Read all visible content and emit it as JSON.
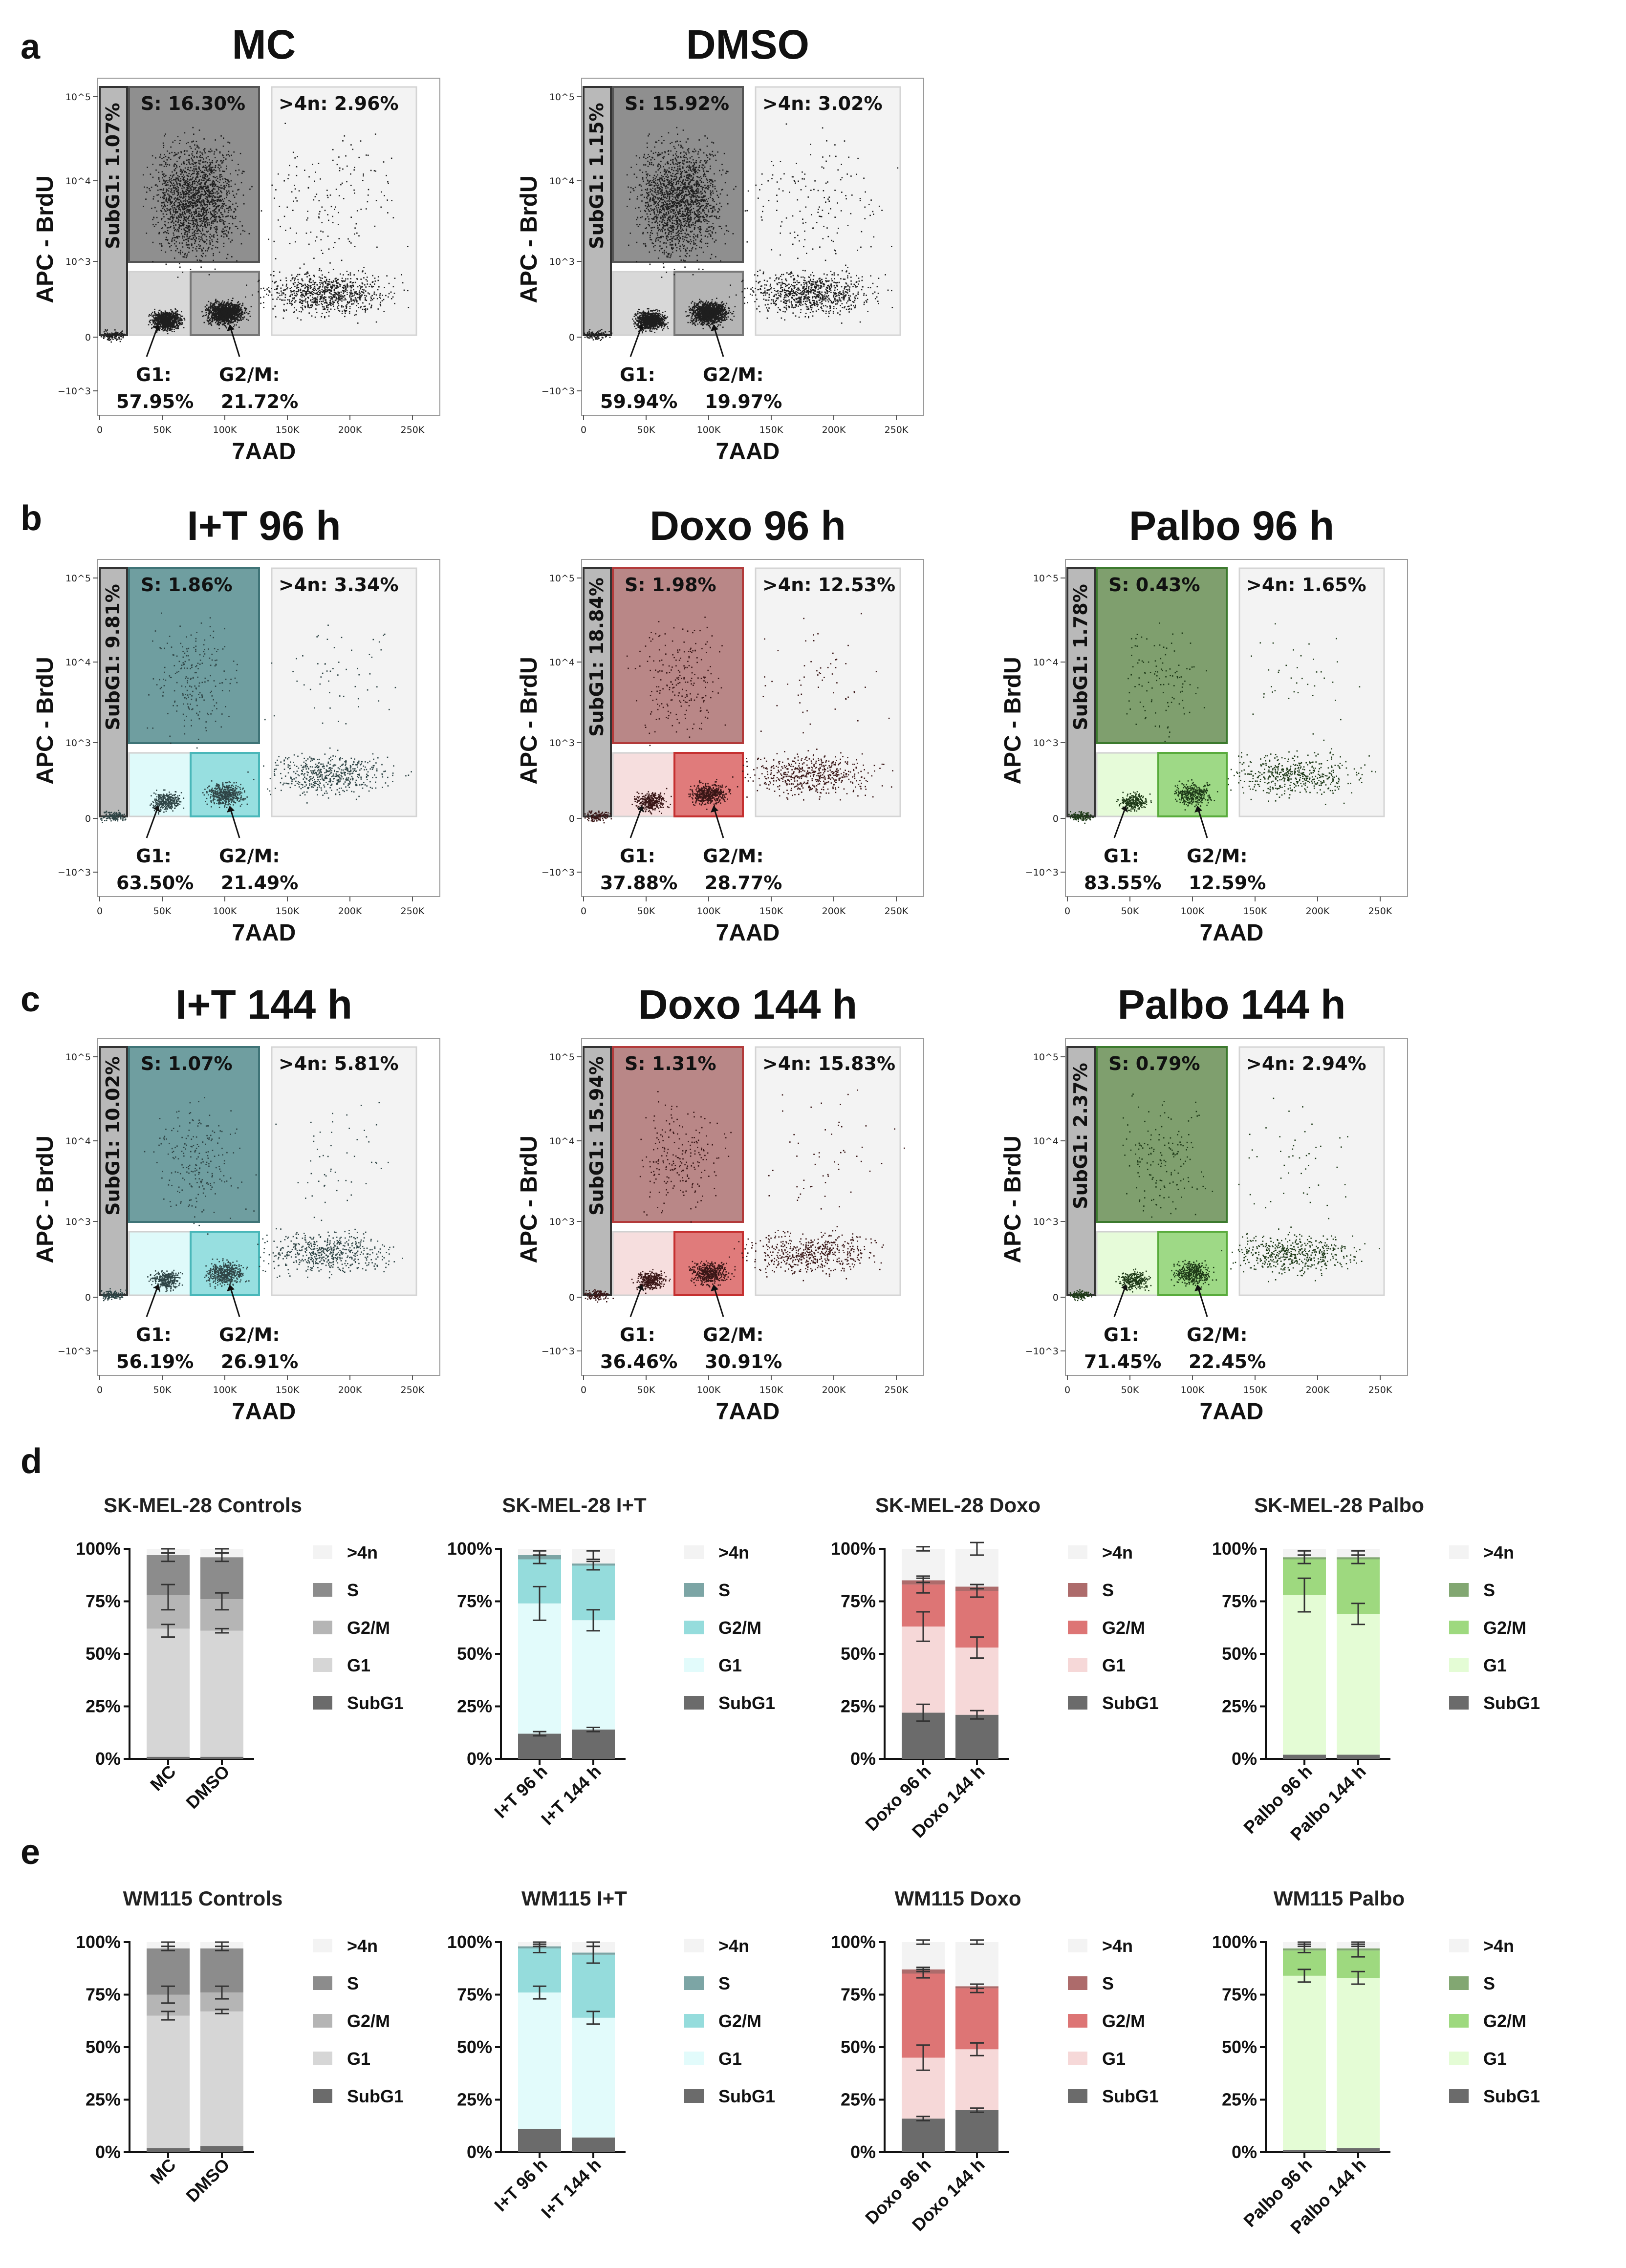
{
  "panel_labels": {
    "a": "a",
    "b": "b",
    "c": "c",
    "d": "d",
    "e": "e"
  },
  "flow": {
    "x_label": "7AAD",
    "y_label": "APC - BrdU",
    "x_ticks": [
      "0",
      "50K",
      "100K",
      "150K",
      "200K",
      "250K"
    ],
    "y_ticks": [
      "10^5",
      "10^4",
      "10^3",
      "0",
      "−10^3"
    ],
    "plots": [
      {
        "id": "mc",
        "title": "MC",
        "theme": "gray",
        "density": 1.0,
        "sub": "SubG1: 1.07%",
        "s": "S: 16.30%",
        "g4n": ">4n: 2.96%",
        "g1": "G1:",
        "g1v": "57.95%",
        "g2": "G2/M:",
        "g2v": "21.72%"
      },
      {
        "id": "dmso",
        "title": "DMSO",
        "theme": "gray",
        "density": 1.0,
        "sub": "SubG1: 1.15%",
        "s": "S: 15.92%",
        "g4n": ">4n: 3.02%",
        "g1": "G1:",
        "g1v": "59.94%",
        "g2": "G2/M:",
        "g2v": "19.97%"
      },
      {
        "id": "it96",
        "title": "I+T 96 h",
        "theme": "teal",
        "density": 0.35,
        "sub": "SubG1: 9.81%",
        "s": "S: 1.86%",
        "g4n": ">4n: 3.34%",
        "g1": "G1:",
        "g1v": "63.50%",
        "g2": "G2/M:",
        "g2v": "21.49%"
      },
      {
        "id": "doxo96",
        "title": "Doxo 96 h",
        "theme": "red",
        "density": 0.35,
        "sub": "SubG1: 18.84%",
        "s": "S: 1.98%",
        "g4n": ">4n: 12.53%",
        "g1": "G1:",
        "g1v": "37.88%",
        "g2": "G2/M:",
        "g2v": "28.77%"
      },
      {
        "id": "palbo96",
        "title": "Palbo 96 h",
        "theme": "green",
        "density": 0.25,
        "sub": "SubG1: 1.78%",
        "s": "S: 0.43%",
        "g4n": ">4n: 1.65%",
        "g1": "G1:",
        "g1v": "83.55%",
        "g2": "G2/M:",
        "g2v": "12.59%"
      },
      {
        "id": "it144",
        "title": "I+T 144 h",
        "theme": "teal",
        "density": 0.35,
        "sub": "SubG1: 10.02%",
        "s": "S: 1.07%",
        "g4n": ">4n: 5.81%",
        "g1": "G1:",
        "g1v": "56.19%",
        "g2": "G2/M:",
        "g2v": "26.91%"
      },
      {
        "id": "doxo144",
        "title": "Doxo 144 h",
        "theme": "red",
        "density": 0.35,
        "sub": "SubG1: 15.94%",
        "s": "S: 1.31%",
        "g4n": ">4n: 15.83%",
        "g1": "G1:",
        "g1v": "36.46%",
        "g2": "G2/M:",
        "g2v": "30.91%"
      },
      {
        "id": "palbo144",
        "title": "Palbo 144 h",
        "theme": "green",
        "density": 0.3,
        "sub": "SubG1: 2.37%",
        "s": "S: 0.79%",
        "g4n": ">4n: 2.94%",
        "g1": "G1:",
        "g1v": "71.45%",
        "g2": "G2/M:",
        "g2v": "22.45%"
      }
    ]
  },
  "themes": {
    "gray": {
      "s_fill": "#8f8f8f",
      "s_stroke": "#555555",
      "g1_fill": "#d8d8d8",
      "g2_fill": "#b5b5b5",
      "g2_stroke": "#777777",
      "dots": "#1e1e1e"
    },
    "teal": {
      "s_fill": "#6f9ea0",
      "s_stroke": "#3f7477",
      "g1_fill": "#dffafa",
      "g2_fill": "#97dfe0",
      "g2_stroke": "#49b7b9",
      "dots": "#2f4546"
    },
    "red": {
      "s_fill": "#b98787",
      "s_stroke": "#b33b3b",
      "g1_fill": "#f6dede",
      "g2_fill": "#e07b7b",
      "g2_stroke": "#c53030",
      "dots": "#3a1717"
    },
    "green": {
      "s_fill": "#7f9f6e",
      "s_stroke": "#3c7a2e",
      "g1_fill": "#e6fbd9",
      "g2_fill": "#9ed986",
      "g2_stroke": "#59ab3c",
      "dots": "#1e3a18"
    }
  },
  "chart_data": [
    {
      "type": "bar",
      "stacked": true,
      "title": "SK-MEL-28 Controls",
      "categories": [
        "MC",
        "DMSO"
      ],
      "ylim": [
        0,
        100
      ],
      "y_ticks": [
        "0%",
        "25%",
        "50%",
        "75%",
        "100%"
      ],
      "legend": [
        ">4n",
        "S",
        "G2/M",
        "G1",
        "SubG1"
      ],
      "colors": {
        "SubG1": "#6b6b6b",
        "G1": "#d6d6d6",
        "G2/M": "#b5b5b5",
        "S": "#8c8c8c",
        ">4n": "#f3f3f3"
      },
      "series": [
        {
          "name": "SubG1",
          "values": [
            1,
            1
          ]
        },
        {
          "name": "G1",
          "values": [
            61,
            60
          ]
        },
        {
          "name": "G2/M",
          "values": [
            16,
            15
          ]
        },
        {
          "name": "S",
          "values": [
            19,
            20
          ]
        },
        {
          "name": ">4n",
          "values": [
            3,
            4
          ]
        }
      ],
      "errors": [
        {
          "at": 61,
          "err": 3
        },
        {
          "at": 61,
          "err": 1
        },
        {
          "at": 77,
          "err": 6
        },
        {
          "at": 75,
          "err": 4
        },
        {
          "at": 96,
          "err": 2
        },
        {
          "at": 96,
          "err": 2
        },
        {
          "at": 99,
          "err": 1
        },
        {
          "at": 99,
          "err": 1
        }
      ]
    },
    {
      "type": "bar",
      "stacked": true,
      "title": "SK-MEL-28 I+T",
      "categories": [
        "I+T 96 h",
        "I+T 144 h"
      ],
      "ylim": [
        0,
        100
      ],
      "y_ticks": [
        "0%",
        "25%",
        "50%",
        "75%",
        "100%"
      ],
      "legend": [
        ">4n",
        "S",
        "G2/M",
        "G1",
        "SubG1"
      ],
      "colors": {
        "SubG1": "#6b6b6b",
        "G1": "#e2fbfb",
        "G2/M": "#95dcdc",
        "S": "#7ca5a5",
        ">4n": "#f3f3f3"
      },
      "series": [
        {
          "name": "SubG1",
          "values": [
            12,
            14
          ]
        },
        {
          "name": "G1",
          "values": [
            62,
            52
          ]
        },
        {
          "name": "G2/M",
          "values": [
            21,
            26
          ]
        },
        {
          "name": "S",
          "values": [
            2,
            1
          ]
        },
        {
          "name": ">4n",
          "values": [
            3,
            7
          ]
        }
      ],
      "errors": [
        {
          "at": 12,
          "err": 1
        },
        {
          "at": 14,
          "err": 1
        },
        {
          "at": 74,
          "err": 8
        },
        {
          "at": 66,
          "err": 5
        },
        {
          "at": 95,
          "err": 2
        },
        {
          "at": 92,
          "err": 2
        },
        {
          "at": 98,
          "err": 1
        },
        {
          "at": 97,
          "err": 2
        }
      ]
    },
    {
      "type": "bar",
      "stacked": true,
      "title": "SK-MEL-28 Doxo",
      "categories": [
        "Doxo 96 h",
        "Doxo 144 h"
      ],
      "ylim": [
        0,
        100
      ],
      "y_ticks": [
        "0%",
        "25%",
        "50%",
        "75%",
        "100%"
      ],
      "legend": [
        ">4n",
        "S",
        "G2/M",
        "G1",
        "SubG1"
      ],
      "colors": {
        "SubG1": "#6b6b6b",
        "G1": "#f6d8d8",
        "G2/M": "#dd7575",
        "S": "#ad6b6b",
        ">4n": "#f3f3f3"
      },
      "series": [
        {
          "name": "SubG1",
          "values": [
            22,
            21
          ]
        },
        {
          "name": "G1",
          "values": [
            41,
            32
          ]
        },
        {
          "name": "G2/M",
          "values": [
            20,
            27
          ]
        },
        {
          "name": "S",
          "values": [
            2,
            2
          ]
        },
        {
          "name": ">4n",
          "values": [
            15,
            18
          ]
        }
      ],
      "errors": [
        {
          "at": 22,
          "err": 4
        },
        {
          "at": 21,
          "err": 2
        },
        {
          "at": 63,
          "err": 7
        },
        {
          "at": 53,
          "err": 5
        },
        {
          "at": 83,
          "err": 4
        },
        {
          "at": 80,
          "err": 3
        },
        {
          "at": 85,
          "err": 1
        },
        {
          "at": 82,
          "err": 1
        },
        {
          "at": 100,
          "err": 1
        },
        {
          "at": 100,
          "err": 3
        }
      ]
    },
    {
      "type": "bar",
      "stacked": true,
      "title": "SK-MEL-28 Palbo",
      "categories": [
        "Palbo 96 h",
        "Palbo 144 h"
      ],
      "ylim": [
        0,
        100
      ],
      "y_ticks": [
        "0%",
        "25%",
        "50%",
        "75%",
        "100%"
      ],
      "legend": [
        ">4n",
        "S",
        "G2/M",
        "G1",
        "SubG1"
      ],
      "colors": {
        "SubG1": "#6b6b6b",
        "G1": "#e4fcd5",
        "G2/M": "#9ed97f",
        "S": "#82a772",
        ">4n": "#f3f3f3"
      },
      "series": [
        {
          "name": "SubG1",
          "values": [
            2,
            2
          ]
        },
        {
          "name": "G1",
          "values": [
            76,
            67
          ]
        },
        {
          "name": "G2/M",
          "values": [
            17,
            26
          ]
        },
        {
          "name": "S",
          "values": [
            1,
            1
          ]
        },
        {
          "name": ">4n",
          "values": [
            4,
            4
          ]
        }
      ],
      "errors": [
        {
          "at": 78,
          "err": 8
        },
        {
          "at": 69,
          "err": 5
        },
        {
          "at": 95,
          "err": 2
        },
        {
          "at": 95,
          "err": 2
        },
        {
          "at": 98,
          "err": 1
        },
        {
          "at": 98,
          "err": 1
        }
      ]
    },
    {
      "type": "bar",
      "stacked": true,
      "title": "WM115 Controls",
      "categories": [
        "MC",
        "DMSO"
      ],
      "ylim": [
        0,
        100
      ],
      "y_ticks": [
        "0%",
        "25%",
        "50%",
        "75%",
        "100%"
      ],
      "legend": [
        ">4n",
        "S",
        "G2/M",
        "G1",
        "SubG1"
      ],
      "colors": {
        "SubG1": "#6b6b6b",
        "G1": "#d6d6d6",
        "G2/M": "#b5b5b5",
        "S": "#8c8c8c",
        ">4n": "#f3f3f3"
      },
      "series": [
        {
          "name": "SubG1",
          "values": [
            2,
            3
          ]
        },
        {
          "name": "G1",
          "values": [
            63,
            64
          ]
        },
        {
          "name": "G2/M",
          "values": [
            10,
            9
          ]
        },
        {
          "name": "S",
          "values": [
            22,
            21
          ]
        },
        {
          "name": ">4n",
          "values": [
            3,
            3
          ]
        }
      ],
      "errors": [
        {
          "at": 65,
          "err": 2
        },
        {
          "at": 67,
          "err": 1
        },
        {
          "at": 75,
          "err": 4
        },
        {
          "at": 76,
          "err": 3
        },
        {
          "at": 97,
          "err": 1
        },
        {
          "at": 97,
          "err": 1
        },
        {
          "at": 99,
          "err": 1
        },
        {
          "at": 99,
          "err": 1
        }
      ]
    },
    {
      "type": "bar",
      "stacked": true,
      "title": "WM115 I+T",
      "categories": [
        "I+T 96 h",
        "I+T 144 h"
      ],
      "ylim": [
        0,
        100
      ],
      "y_ticks": [
        "0%",
        "25%",
        "50%",
        "75%",
        "100%"
      ],
      "legend": [
        ">4n",
        "S",
        "G2/M",
        "G1",
        "SubG1"
      ],
      "colors": {
        "SubG1": "#6b6b6b",
        "G1": "#e2fbfb",
        "G2/M": "#95dcdc",
        "S": "#7ca5a5",
        ">4n": "#f3f3f3"
      },
      "series": [
        {
          "name": "SubG1",
          "values": [
            11,
            7
          ]
        },
        {
          "name": "G1",
          "values": [
            65,
            57
          ]
        },
        {
          "name": "G2/M",
          "values": [
            21,
            30
          ]
        },
        {
          "name": "S",
          "values": [
            1,
            1
          ]
        },
        {
          "name": ">4n",
          "values": [
            2,
            5
          ]
        }
      ],
      "errors": [
        {
          "at": 76,
          "err": 3
        },
        {
          "at": 64,
          "err": 3
        },
        {
          "at": 97,
          "err": 2
        },
        {
          "at": 94,
          "err": 4
        },
        {
          "at": 99,
          "err": 1
        },
        {
          "at": 99,
          "err": 1
        }
      ]
    },
    {
      "type": "bar",
      "stacked": true,
      "title": "WM115 Doxo",
      "categories": [
        "Doxo 96 h",
        "Doxo 144 h"
      ],
      "ylim": [
        0,
        100
      ],
      "y_ticks": [
        "0%",
        "25%",
        "50%",
        "75%",
        "100%"
      ],
      "legend": [
        ">4n",
        "S",
        "G2/M",
        "G1",
        "SubG1"
      ],
      "colors": {
        "SubG1": "#6b6b6b",
        "G1": "#f6d8d8",
        "G2/M": "#dd7575",
        "S": "#ad6b6b",
        ">4n": "#f3f3f3"
      },
      "series": [
        {
          "name": "SubG1",
          "values": [
            16,
            20
          ]
        },
        {
          "name": "G1",
          "values": [
            29,
            29
          ]
        },
        {
          "name": "G2/M",
          "values": [
            40,
            29
          ]
        },
        {
          "name": "S",
          "values": [
            2,
            1
          ]
        },
        {
          "name": ">4n",
          "values": [
            13,
            21
          ]
        }
      ],
      "errors": [
        {
          "at": 16,
          "err": 1
        },
        {
          "at": 20,
          "err": 1
        },
        {
          "at": 45,
          "err": 6
        },
        {
          "at": 49,
          "err": 3
        },
        {
          "at": 85,
          "err": 2
        },
        {
          "at": 78,
          "err": 2
        },
        {
          "at": 87,
          "err": 1
        },
        {
          "at": 79,
          "err": 1
        },
        {
          "at": 100,
          "err": 1
        },
        {
          "at": 100,
          "err": 1
        }
      ]
    },
    {
      "type": "bar",
      "stacked": true,
      "title": "WM115 Palbo",
      "categories": [
        "Palbo 96 h",
        "Palbo 144 h"
      ],
      "ylim": [
        0,
        100
      ],
      "y_ticks": [
        "0%",
        "25%",
        "50%",
        "75%",
        "100%"
      ],
      "legend": [
        ">4n",
        "S",
        "G2/M",
        "G1",
        "SubG1"
      ],
      "colors": {
        "SubG1": "#6b6b6b",
        "G1": "#e4fcd5",
        "G2/M": "#9ed97f",
        "S": "#82a772",
        ">4n": "#f3f3f3"
      },
      "series": [
        {
          "name": "SubG1",
          "values": [
            1,
            2
          ]
        },
        {
          "name": "G1",
          "values": [
            83,
            81
          ]
        },
        {
          "name": "G2/M",
          "values": [
            12,
            13
          ]
        },
        {
          "name": "S",
          "values": [
            1,
            1
          ]
        },
        {
          "name": ">4n",
          "values": [
            3,
            3
          ]
        }
      ],
      "errors": [
        {
          "at": 84,
          "err": 3
        },
        {
          "at": 83,
          "err": 3
        },
        {
          "at": 97,
          "err": 2
        },
        {
          "at": 96,
          "err": 3
        },
        {
          "at": 99,
          "err": 1
        },
        {
          "at": 99,
          "err": 1
        }
      ]
    }
  ]
}
